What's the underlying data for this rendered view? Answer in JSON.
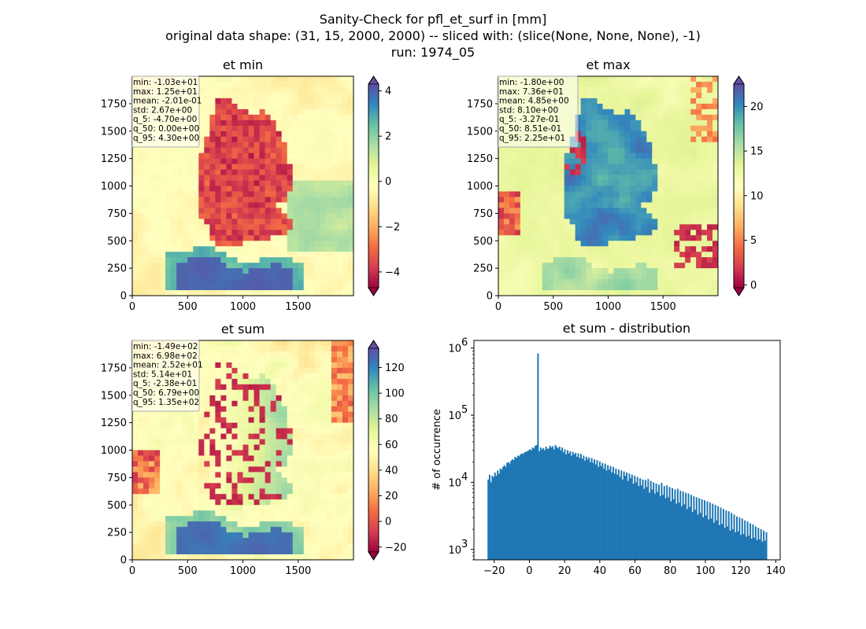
{
  "figure": {
    "title_lines": [
      "Sanity-Check for pfl_et_surf in [mm]",
      "original data shape: (31, 15, 2000, 2000) -- sliced with: (slice(None, None, None), -1)",
      "run: 1974_05"
    ]
  },
  "maps": [
    {
      "title": "et min",
      "cmap": "Spectral",
      "clim": [
        -4.7,
        4.3
      ],
      "colorbar_ticks": [
        "4",
        "2",
        "0",
        "−2",
        "−4"
      ],
      "colorbar_tick_values": [
        4,
        2,
        0,
        -2,
        -4
      ],
      "stats": [
        "min: -1.03e+01",
        "max: 1.25e+01",
        "mean: -2.01e-01",
        "std: 2.67e+00",
        "q_5: -4.70e+00",
        "q_50: 0.00e+00",
        "q_95: 4.30e+00"
      ],
      "pattern": "min"
    },
    {
      "title": "et max",
      "cmap": "Spectral",
      "clim": [
        -0.327,
        22.5
      ],
      "colorbar_ticks": [
        "20",
        "15",
        "10",
        "5",
        "0"
      ],
      "colorbar_tick_values": [
        20,
        15,
        10,
        5,
        0
      ],
      "stats": [
        "min: -1.80e+00",
        "max: 7.36e+01",
        "mean: 4.85e+00",
        "std: 8.10e+00",
        "q_5: -3.27e-01",
        "q_50: 8.51e-01",
        "q_95: 2.25e+01"
      ],
      "pattern": "max"
    },
    {
      "title": "et sum",
      "cmap": "Spectral",
      "clim": [
        -23.8,
        135
      ],
      "colorbar_ticks": [
        "120",
        "100",
        "80",
        "60",
        "40",
        "20",
        "0",
        "−20"
      ],
      "colorbar_tick_values": [
        120,
        100,
        80,
        60,
        40,
        20,
        0,
        -20
      ],
      "stats": [
        "min: -1.49e+02",
        "max: 6.98e+02",
        "mean: 2.52e+01",
        "std: 5.14e+01",
        "q_5: -2.38e+01",
        "q_50: 6.79e+00",
        "q_95: 1.35e+02"
      ],
      "pattern": "sum"
    }
  ],
  "map_axes": {
    "x_ticks": [
      "0",
      "500",
      "1000",
      "1500"
    ],
    "x_tick_values": [
      0,
      500,
      1000,
      1500
    ],
    "y_ticks": [
      "0",
      "250",
      "500",
      "750",
      "1000",
      "1250",
      "1500",
      "1750"
    ],
    "y_tick_values": [
      0,
      250,
      500,
      750,
      1000,
      1250,
      1500,
      1750
    ],
    "extent": [
      0,
      2000
    ]
  },
  "chart_data": {
    "type": "bar",
    "title": "et sum - distribution",
    "xlabel": "",
    "ylabel": "# of occurrence",
    "yscale": "log",
    "xlim": [
      -31.5,
      142.5
    ],
    "ylim": [
      700,
      1300000
    ],
    "x_ticks": [
      "−20",
      "0",
      "20",
      "40",
      "60",
      "80",
      "100",
      "120",
      "140"
    ],
    "x_tick_values": [
      -20,
      0,
      20,
      40,
      60,
      80,
      100,
      120,
      140
    ],
    "y_ticks": [
      "10",
      "10",
      "10",
      "10"
    ],
    "y_tick_exponents": [
      "3",
      "4",
      "5",
      "6"
    ],
    "y_tick_values": [
      1000,
      10000,
      100000,
      1000000
    ],
    "color": "#1f77b4",
    "bin_range": [
      -23.8,
      135
    ],
    "bins": 200,
    "series": [
      {
        "values": [
          11000,
          13000,
          10000,
          12500,
          12000,
          14000,
          12500,
          15000,
          13500,
          16000,
          15500,
          17000,
          18000,
          17000,
          19500,
          20000,
          19000,
          21000,
          22000,
          21500,
          24000,
          23000,
          25000,
          24500,
          26000,
          27000,
          26500,
          28000,
          28500,
          29000,
          30000,
          31000,
          30000,
          33000,
          32000,
          35000,
          36000,
          830000,
          29000,
          33000,
          31000,
          32500,
          30000,
          34000,
          31500,
          32000,
          35000,
          33000,
          34500,
          31000,
          36000,
          33500,
          32000,
          34000,
          30000,
          33000,
          28000,
          31000,
          26000,
          30000,
          27000,
          29000,
          25000,
          28500,
          26000,
          27500,
          24000,
          27000,
          23000,
          26500,
          22500,
          25000,
          21000,
          24000,
          22000,
          23500,
          20000,
          23000,
          19500,
          22000,
          18500,
          21500,
          17000,
          20500,
          17500,
          19500,
          16000,
          19000,
          15000,
          18000,
          15500,
          17500,
          14000,
          17000,
          13500,
          16000,
          13000,
          15500,
          12000,
          15000,
          11000,
          14500,
          12500,
          14000,
          10500,
          13500,
          11500,
          13000,
          9500,
          12500,
          10000,
          12000,
          8800,
          11500,
          9000,
          11000,
          8000,
          10800,
          8500,
          11200,
          7000,
          10500,
          7800,
          10000,
          6800,
          9600,
          7200,
          9200,
          6200,
          9800,
          6500,
          8800,
          5800,
          9000,
          6000,
          8500,
          5200,
          8200,
          5600,
          7800,
          4800,
          8000,
          5000,
          7500,
          4400,
          7300,
          4700,
          7000,
          4000,
          6800,
          4300,
          6500,
          3600,
          6200,
          3900,
          6000,
          3300,
          5800,
          3500,
          5600,
          3000,
          5400,
          3200,
          5200,
          2800,
          5000,
          2900,
          4800,
          2500,
          4600,
          2700,
          4400,
          2300,
          4200,
          2400,
          4000,
          2100,
          3800,
          2200,
          3700,
          1900,
          3500,
          2000,
          3300,
          1800,
          3100,
          1850,
          3000,
          1650,
          2900,
          1700,
          2700,
          1550,
          2600,
          1600,
          2450,
          1450,
          2350,
          1500,
          2200,
          1380,
          2100,
          1420,
          2000,
          1300,
          1900,
          1350,
          1800
        ]
      }
    ]
  }
}
